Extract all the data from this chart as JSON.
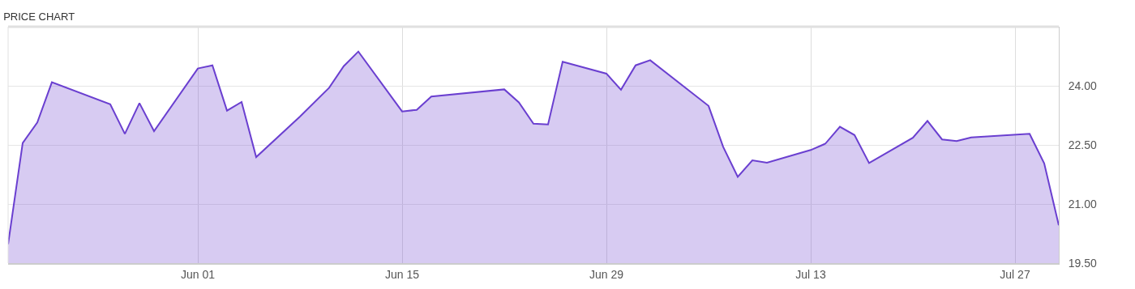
{
  "chart_data": {
    "type": "area",
    "title": "PRICE CHART",
    "x": [
      "--05-19",
      "--05-20",
      "--05-21",
      "--05-22",
      "--05-26",
      "--05-27",
      "--05-28",
      "--05-29",
      "--06-01",
      "--06-02",
      "--06-03",
      "--06-04",
      "--06-05",
      "--06-08",
      "--06-10",
      "--06-11",
      "--06-12",
      "--06-15",
      "--06-16",
      "--06-17",
      "--06-22",
      "--06-23",
      "--06-24",
      "--06-25",
      "--06-26",
      "--06-29",
      "--06-30",
      "--07-01",
      "--07-02",
      "--07-06",
      "--07-07",
      "--07-08",
      "--07-09",
      "--07-10",
      "--07-13",
      "--07-14",
      "--07-15",
      "--07-16",
      "--07-17",
      "--07-20",
      "--07-21",
      "--07-22",
      "--07-23",
      "--07-24",
      "--07-28",
      "--07-29",
      "--07-30"
    ],
    "series": [
      {
        "color": "#6a3fd0",
        "values": [
          19.98,
          22.55,
          23.07,
          24.09,
          23.53,
          22.78,
          23.56,
          22.85,
          24.44,
          24.52,
          23.37,
          23.59,
          22.19,
          23.22,
          23.95,
          24.5,
          24.87,
          23.35,
          23.39,
          23.73,
          23.91,
          23.58,
          23.04,
          23.02,
          24.61,
          24.31,
          23.9,
          24.52,
          24.65,
          23.49,
          22.45,
          21.69,
          22.11,
          22.05,
          22.37,
          22.53,
          22.96,
          22.75,
          22.04,
          22.68,
          23.11,
          22.64,
          22.6,
          22.69,
          22.78,
          22.03,
          20.46
        ]
      }
    ],
    "xticks": [
      {
        "value": "--06-01",
        "label": "Jun 01"
      },
      {
        "value": "--06-15",
        "label": "Jun 15"
      },
      {
        "value": "--06-29",
        "label": "Jun 29"
      },
      {
        "value": "--07-13",
        "label": "Jul 13"
      },
      {
        "value": "--07-27",
        "label": "Jul 27"
      }
    ],
    "xlim": [
      "--05-19",
      "--07-30"
    ],
    "ylim": [
      19.5,
      25.5
    ],
    "yticks": [
      {
        "value": 19.5,
        "label": "19.50"
      },
      {
        "value": 21,
        "label": "21.00"
      },
      {
        "value": 22.5,
        "label": "22.50"
      },
      {
        "value": 24,
        "label": "24.00"
      }
    ],
    "grid": true
  }
}
